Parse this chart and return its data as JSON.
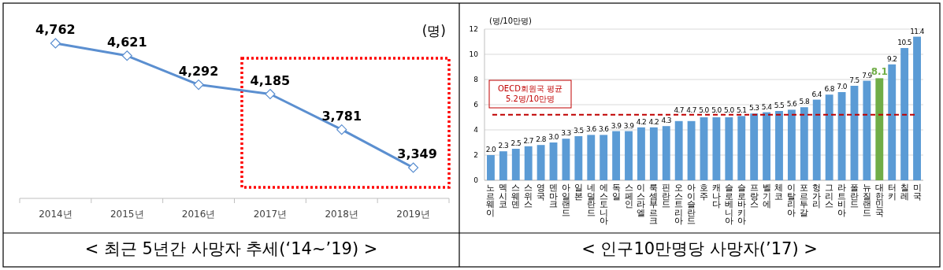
{
  "chart_data": [
    {
      "type": "line",
      "title": "< 최근 5년간 사망자 추세(‘14~’19) >",
      "ylabel": "(명)",
      "categories": [
        "2014년",
        "2015년",
        "2016년",
        "2017년",
        "2018년",
        "2019년"
      ],
      "series": [
        {
          "color": "#5b8fd0",
          "values": [
            4762,
            4621,
            4292,
            4185,
            3781,
            3349
          ],
          "value_labels": [
            "4,762",
            "4,621",
            "4,292",
            "4,185",
            "3,781",
            "3,349"
          ]
        }
      ],
      "marker": "diamond"
    },
    {
      "type": "bar",
      "title": "< 인구10만명당 사망자(’17) >",
      "ylabel": "(명/10만명)",
      "categories": [
        "노르웨이",
        "멕시코",
        "스웨덴",
        "스위스",
        "영국",
        "덴마크",
        "아일랜드",
        "일본",
        "네덜란드",
        "에스토니아",
        "독일",
        "스페인",
        "이스라엘",
        "룩셈부르크",
        "핀란드",
        "오스트리아",
        "아이슬란드",
        "호주",
        "캐나다",
        "슬로베니아",
        "슬로바키아",
        "프랑스",
        "벨기에",
        "체코",
        "이탈리아",
        "포르투갈",
        "헝가리",
        "그리스",
        "라트비아",
        "폴란드",
        "뉴질랜드",
        "대한민국",
        "터키",
        "칠레",
        "미국"
      ],
      "values": [
        2.0,
        2.3,
        2.5,
        2.7,
        2.8,
        3.0,
        3.3,
        3.5,
        3.6,
        3.6,
        3.9,
        3.9,
        4.2,
        4.2,
        4.3,
        4.7,
        4.7,
        5.0,
        5.0,
        5.0,
        5.1,
        5.3,
        5.4,
        5.5,
        5.6,
        5.8,
        6.4,
        6.8,
        7.0,
        7.5,
        7.9,
        8.1,
        9.2,
        10.5,
        11.4
      ],
      "colors": [
        "#5b9bd5",
        "#5b9bd5",
        "#5b9bd5",
        "#5b9bd5",
        "#5b9bd5",
        "#5b9bd5",
        "#5b9bd5",
        "#5b9bd5",
        "#5b9bd5",
        "#5b9bd5",
        "#5b9bd5",
        "#5b9bd5",
        "#5b9bd5",
        "#5b9bd5",
        "#5b9bd5",
        "#5b9bd5",
        "#5b9bd5",
        "#5b9bd5",
        "#5b9bd5",
        "#5b9bd5",
        "#5b9bd5",
        "#5b9bd5",
        "#5b9bd5",
        "#5b9bd5",
        "#5b9bd5",
        "#5b9bd5",
        "#5b9bd5",
        "#5b9bd5",
        "#5b9bd5",
        "#5b9bd5",
        "#5b9bd5",
        "#70ad47",
        "#5b9bd5",
        "#5b9bd5",
        "#5b9bd5"
      ],
      "value_labels": [
        "2.0",
        "2.3",
        "2.5",
        "2.7",
        "2.8",
        "3.0",
        "3.3",
        "3.5",
        "3.6",
        "3.6",
        "3.9",
        "3.9",
        "4.2",
        "4.2",
        "4.3",
        "4.7",
        "4.7",
        "5.0",
        "5.0",
        "5.0",
        "5.1",
        "5.3",
        "5.4",
        "5.5",
        "5.6",
        "5.8",
        "6.4",
        "6.8",
        "7.0",
        "7.5",
        "7.9",
        "8.1",
        "9.2",
        "10.5",
        "11.4"
      ],
      "ylim": [
        0,
        12
      ],
      "yticks": [
        0,
        2,
        4,
        6,
        8,
        10,
        12
      ],
      "grid": "y",
      "ref_lines": [
        {
          "axis": "y",
          "value": 5.2,
          "label": "OECD회원국 평균\n5.2명/10만명",
          "color": "#c00000",
          "line_style": "dashed"
        }
      ]
    }
  ]
}
